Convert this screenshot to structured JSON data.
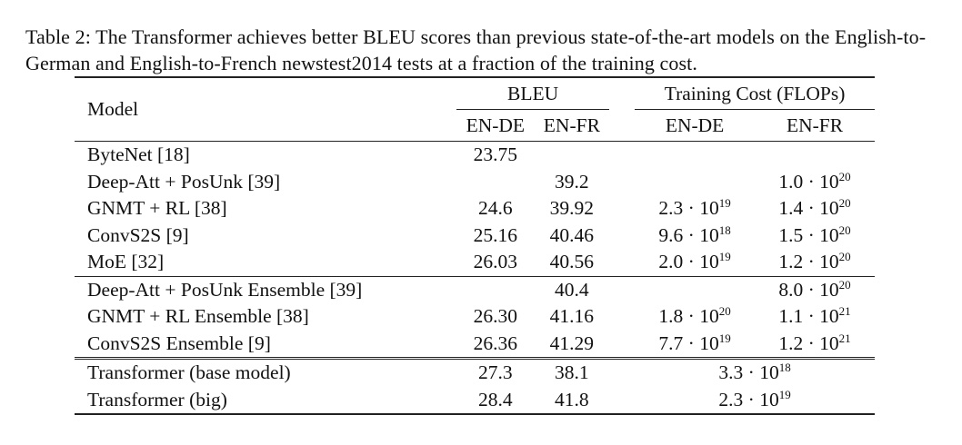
{
  "caption": "Table 2: The Transformer achieves better BLEU scores than previous state-of-the-art models on the English-to-German and English-to-French newstest2014 tests at a fraction of the training cost.",
  "header": {
    "model": "Model",
    "bleu": "BLEU",
    "training_cost": "Training Cost (FLOPs)",
    "en_de": "EN-DE",
    "en_fr": "EN-FR",
    "cost_en_de": "EN-DE",
    "cost_en_fr": "EN-FR"
  },
  "rows": [
    {
      "model": "ByteNet [18]",
      "bleu_de": "23.75",
      "bleu_fr": "",
      "cost_de": {
        "m": "",
        "e": ""
      },
      "cost_fr": {
        "m": "",
        "e": ""
      }
    },
    {
      "model": "Deep-Att + PosUnk [39]",
      "bleu_de": "",
      "bleu_fr": "39.2",
      "cost_de": {
        "m": "",
        "e": ""
      },
      "cost_fr": {
        "m": "1.0 · 10",
        "e": "20"
      }
    },
    {
      "model": "GNMT + RL [38]",
      "bleu_de": "24.6",
      "bleu_fr": "39.92",
      "cost_de": {
        "m": "2.3 · 10",
        "e": "19"
      },
      "cost_fr": {
        "m": "1.4 · 10",
        "e": "20"
      }
    },
    {
      "model": "ConvS2S [9]",
      "bleu_de": "25.16",
      "bleu_fr": "40.46",
      "cost_de": {
        "m": "9.6 · 10",
        "e": "18"
      },
      "cost_fr": {
        "m": "1.5 · 10",
        "e": "20"
      }
    },
    {
      "model": "MoE [32]",
      "bleu_de": "26.03",
      "bleu_fr": "40.56",
      "cost_de": {
        "m": "2.0 · 10",
        "e": "19"
      },
      "cost_fr": {
        "m": "1.2 · 10",
        "e": "20"
      }
    },
    {
      "model": "Deep-Att + PosUnk Ensemble [39]",
      "bleu_de": "",
      "bleu_fr": "40.4",
      "cost_de": {
        "m": "",
        "e": ""
      },
      "cost_fr": {
        "m": "8.0 · 10",
        "e": "20"
      }
    },
    {
      "model": "GNMT + RL Ensemble [38]",
      "bleu_de": "26.30",
      "bleu_fr": "41.16",
      "cost_de": {
        "m": "1.8 · 10",
        "e": "20"
      },
      "cost_fr": {
        "m": "1.1 · 10",
        "e": "21"
      }
    },
    {
      "model": "ConvS2S Ensemble [9]",
      "bleu_de": "26.36",
      "bleu_fr": "41.29",
      "cost_de": {
        "m": "7.7 · 10",
        "e": "19"
      },
      "cost_fr": {
        "m": "1.2 · 10",
        "e": "21"
      }
    },
    {
      "model": "Transformer (base model)",
      "bleu_de": "27.3",
      "bleu_fr": "38.1",
      "cost_both": {
        "m": "3.3 · 10",
        "e": "18"
      }
    },
    {
      "model": "Transformer (big)",
      "bleu_de": "28.4",
      "bleu_fr": "41.8",
      "cost_both": {
        "m": "2.3 · 10",
        "e": "19"
      }
    }
  ]
}
